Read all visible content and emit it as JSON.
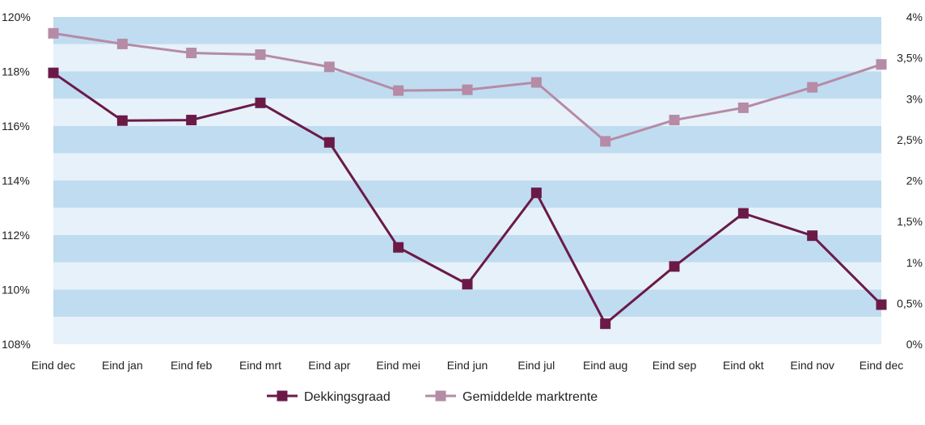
{
  "chart_data": {
    "type": "line",
    "categories": [
      "Eind dec",
      "Eind jan",
      "Eind feb",
      "Eind mrt",
      "Eind apr",
      "Eind mei",
      "Eind jun",
      "Eind jul",
      "Eind aug",
      "Eind sep",
      "Eind okt",
      "Eind nov",
      "Eind dec"
    ],
    "series": [
      {
        "name": "Dekkingsgraad",
        "axis": "left",
        "color": "#6b1a48",
        "values": [
          117.95,
          116.2,
          116.22,
          116.85,
          115.4,
          111.55,
          110.2,
          113.55,
          108.75,
          110.85,
          112.8,
          111.98,
          109.45
        ]
      },
      {
        "name": "Gemiddelde marktrente",
        "axis": "right",
        "color": "#b58ba6",
        "values": [
          3.8,
          3.67,
          3.56,
          3.54,
          3.39,
          3.1,
          3.11,
          3.2,
          2.48,
          2.74,
          2.89,
          3.14,
          3.42
        ]
      }
    ],
    "y_left": {
      "ylim": [
        108,
        120
      ],
      "ticks": [
        108,
        110,
        112,
        114,
        116,
        118,
        120
      ],
      "tick_labels": [
        "108%",
        "110%",
        "112%",
        "114%",
        "116%",
        "118%",
        "120%"
      ]
    },
    "y_right": {
      "ylim": [
        0,
        4
      ],
      "ticks": [
        0,
        0.5,
        1,
        1.5,
        2,
        2.5,
        3,
        3.5,
        4
      ],
      "tick_labels": [
        "0%",
        "0,5%",
        "1%",
        "1,5%",
        "2%",
        "2,5%",
        "3%",
        "3,5%",
        "4%"
      ]
    },
    "background_bands": [
      "#c0dcf0",
      "#e6f1fa"
    ],
    "legend_position": "bottom-center",
    "grid": false
  }
}
